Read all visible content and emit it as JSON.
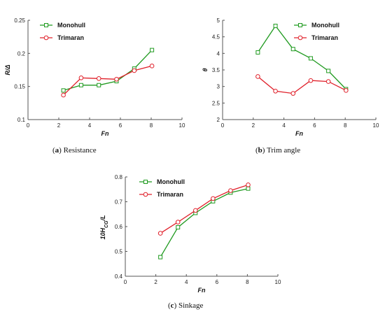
{
  "colors": {
    "monohull": "#1f9a1f",
    "trimaran": "#e0202a",
    "axis": "#555555"
  },
  "chart_data": [
    {
      "type": "line",
      "caption_letter": "a",
      "caption_text": "Resistance",
      "xlabel": "Fn",
      "ylabel": "R/Δ",
      "xlim": [
        0,
        10
      ],
      "ylim": [
        0.1,
        0.25
      ],
      "xticks": [
        "0",
        "2",
        "4",
        "6",
        "8",
        "10"
      ],
      "yticks": [
        "0.1",
        "0.15",
        "0.2",
        "0.25"
      ],
      "legend_position": "top-left",
      "series": [
        {
          "name": "Monohull",
          "marker": "square",
          "x": [
            2.3,
            3.45,
            4.6,
            5.75,
            6.9,
            8.05
          ],
          "y": [
            0.144,
            0.152,
            0.152,
            0.158,
            0.177,
            0.205
          ]
        },
        {
          "name": "Trimaran",
          "marker": "circle",
          "x": [
            2.3,
            3.45,
            4.6,
            5.75,
            6.9,
            8.05
          ],
          "y": [
            0.137,
            0.163,
            0.162,
            0.161,
            0.174,
            0.181
          ]
        }
      ]
    },
    {
      "type": "line",
      "caption_letter": "b",
      "caption_text": "Trim angle",
      "xlabel": "Fn",
      "ylabel": "θ",
      "xlim": [
        0,
        10
      ],
      "ylim": [
        2,
        5
      ],
      "xticks": [
        "0",
        "2",
        "4",
        "6",
        "8",
        "10"
      ],
      "yticks": [
        "2",
        "2.5",
        "3",
        "3.5",
        "4",
        "4.5",
        "5"
      ],
      "legend_position": "top-right",
      "series": [
        {
          "name": "Monohull",
          "marker": "square",
          "x": [
            2.3,
            3.45,
            4.6,
            5.75,
            6.9,
            8.05
          ],
          "y": [
            4.03,
            4.83,
            4.13,
            3.85,
            3.47,
            2.92
          ]
        },
        {
          "name": "Trimaran",
          "marker": "circle",
          "x": [
            2.3,
            3.45,
            4.6,
            5.75,
            6.9,
            8.05
          ],
          "y": [
            3.3,
            2.86,
            2.79,
            3.18,
            3.15,
            2.88
          ]
        }
      ]
    },
    {
      "type": "line",
      "caption_letter": "c",
      "caption_text": "Sinkage",
      "xlabel": "Fn",
      "ylabel": "10H",
      "ylabel_sub": "CG",
      "ylabel_tail": "/L",
      "xlim": [
        0,
        10
      ],
      "ylim": [
        0.4,
        0.8
      ],
      "xticks": [
        "0",
        "2",
        "4",
        "6",
        "8",
        "10"
      ],
      "yticks": [
        "0.4",
        "0.5",
        "0.6",
        "0.7",
        "0.8"
      ],
      "legend_position": "top-left",
      "series": [
        {
          "name": "Monohull",
          "marker": "square",
          "x": [
            2.3,
            3.45,
            4.6,
            5.75,
            6.9,
            8.05
          ],
          "y": [
            0.477,
            0.597,
            0.655,
            0.702,
            0.737,
            0.753
          ]
        },
        {
          "name": "Trimaran",
          "marker": "circle",
          "x": [
            2.3,
            3.45,
            4.6,
            5.75,
            6.9,
            8.05
          ],
          "y": [
            0.573,
            0.618,
            0.665,
            0.713,
            0.745,
            0.768
          ]
        }
      ]
    }
  ]
}
